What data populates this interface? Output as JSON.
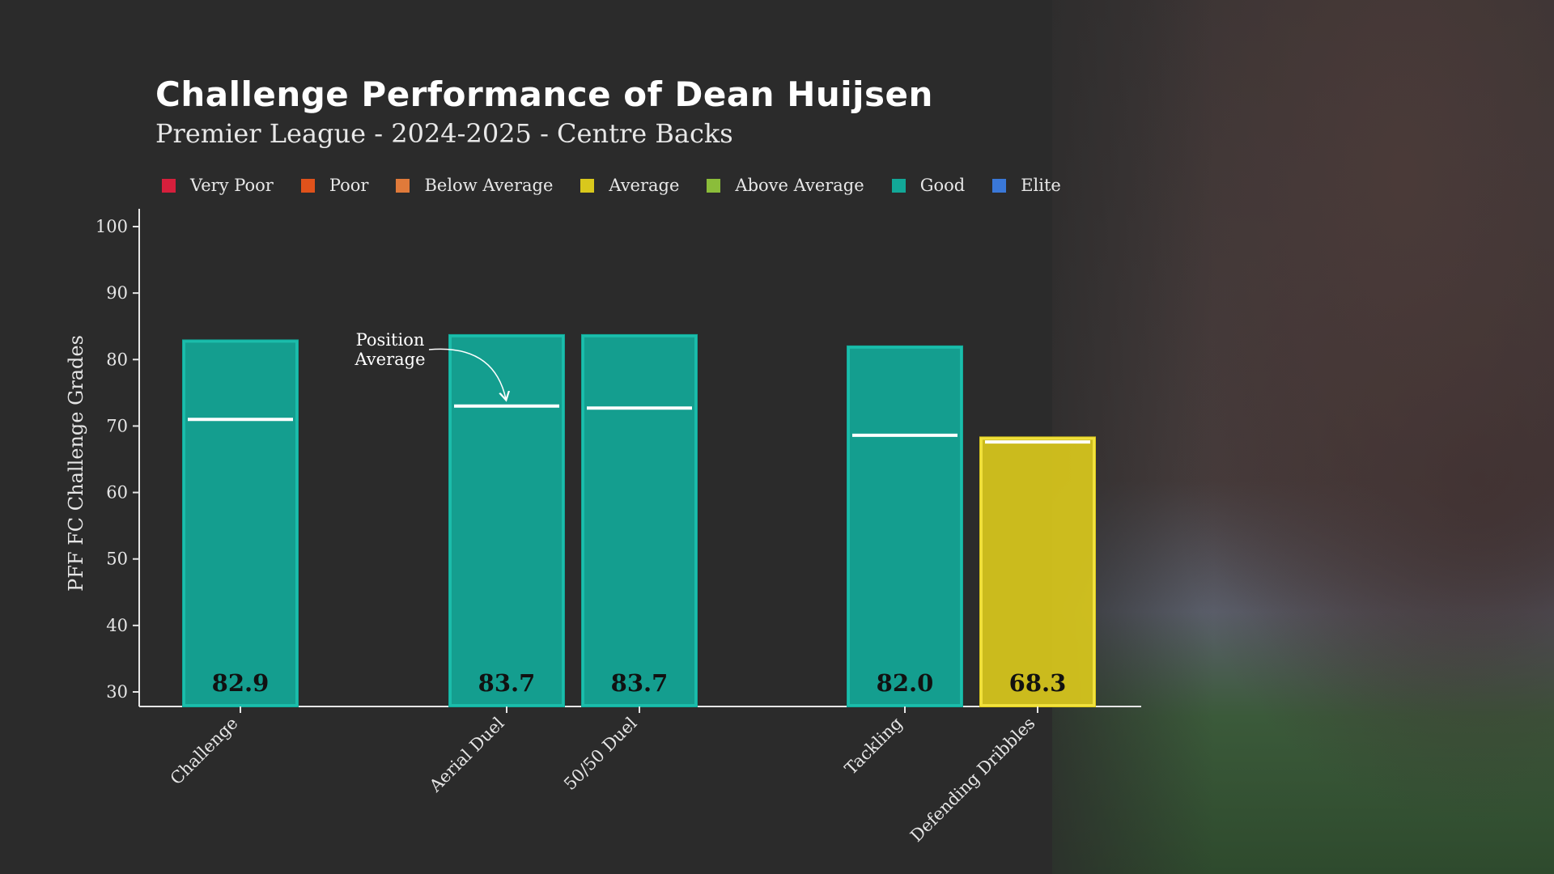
{
  "title": "Challenge Performance of Dean Huijsen",
  "subtitle": "Premier League - 2024-2025 - Centre Backs",
  "legend": [
    {
      "label": "Very Poor",
      "color": "#d61f3c"
    },
    {
      "label": "Poor",
      "color": "#e0521b"
    },
    {
      "label": "Below Average",
      "color": "#e07a3a"
    },
    {
      "label": "Average",
      "color": "#d9c81c"
    },
    {
      "label": "Above Average",
      "color": "#8bbd3a"
    },
    {
      "label": "Good",
      "color": "#12a898"
    },
    {
      "label": "Elite",
      "color": "#3a78d8"
    }
  ],
  "annotation": "Position\nAverage",
  "chart_data": {
    "type": "bar",
    "title": "Challenge Performance of Dean Huijsen",
    "subtitle": "Premier League - 2024-2025 - Centre Backs",
    "xlabel": "",
    "ylabel": "PFF FC Challenge Grades",
    "ylim": [
      30,
      100
    ],
    "yticks": [
      30,
      40,
      50,
      60,
      70,
      80,
      90,
      100
    ],
    "grid": false,
    "legend_placement": "top",
    "categories": [
      "Challenge",
      "Aerial Duel",
      "50/50 Duel",
      "Tackling",
      "Defending Dribbles"
    ],
    "values": [
      82.9,
      83.7,
      83.7,
      82.0,
      68.3
    ],
    "value_labels": [
      "82.9",
      "83.7",
      "83.7",
      "82.0",
      "68.3"
    ],
    "grade": [
      "Good",
      "Good",
      "Good",
      "Good",
      "Average"
    ],
    "position_average": [
      71.0,
      73.0,
      72.7,
      68.6,
      67.6
    ],
    "bar_colors": {
      "Good": "#12a898",
      "Average": "#d9c81c"
    }
  }
}
